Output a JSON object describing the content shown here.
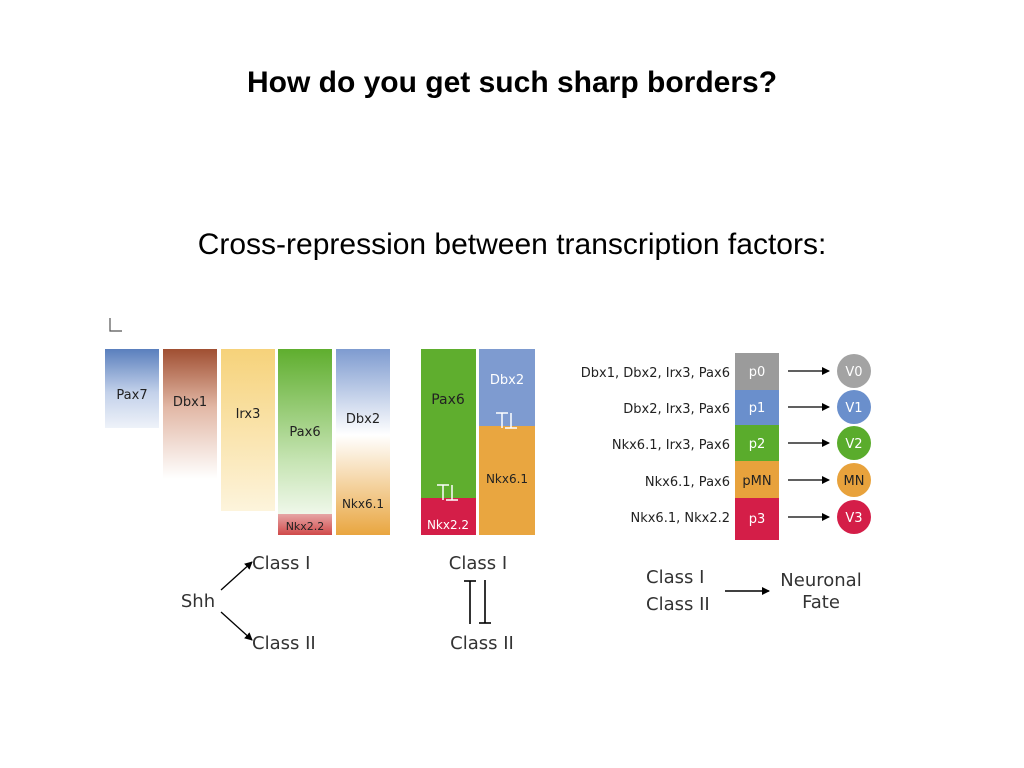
{
  "slide": {
    "title": "How do you get such sharp borders?",
    "subtitle": "Cross-repression between transcription factors:"
  },
  "panel_left": {
    "genes": [
      {
        "label": "Pax7",
        "color": "#5a7fbd"
      },
      {
        "label": "Dbx1",
        "color": "#a45a3a"
      },
      {
        "label": "Irx3",
        "color": "#f6d27a"
      },
      {
        "label": "Pax6",
        "color": "#5fae2e"
      },
      {
        "label": "Dbx2",
        "color": "#7e9bd0"
      },
      {
        "label": "Nkx6.1",
        "color": "#e9a640"
      },
      {
        "label": "Nkx2.2",
        "color": "#d2354a"
      }
    ],
    "shh": "Shh",
    "class1": "Class I",
    "class2": "Class II"
  },
  "panel_middle": {
    "pax6": "Pax6",
    "dbx2": "Dbx2",
    "nkx61": "Nkx6.1",
    "nkx22": "Nkx2.2",
    "class1": "Class I",
    "class2": "Class II"
  },
  "panel_right": {
    "rows": [
      {
        "genes": "Dbx1, Dbx2, Irx3, Pax6",
        "domain": "p0",
        "fate": "V0",
        "color": "#9b9b9b"
      },
      {
        "genes": "Dbx2, Irx3, Pax6",
        "domain": "p1",
        "fate": "V1",
        "color": "#6a8fcc"
      },
      {
        "genes": "Nkx6.1, Irx3, Pax6",
        "domain": "p2",
        "fate": "V2",
        "color": "#5aac2c"
      },
      {
        "genes": "Nkx6.1, Pax6",
        "domain": "pMN",
        "fate": "MN",
        "color": "#e8a23c"
      },
      {
        "genes": "Nkx6.1, Nkx2.2",
        "domain": "p3",
        "fate": "V3",
        "color": "#d41e48"
      }
    ],
    "class1": "Class I",
    "class2": "Class II",
    "neuronal": "Neuronal",
    "fate": "Fate"
  }
}
